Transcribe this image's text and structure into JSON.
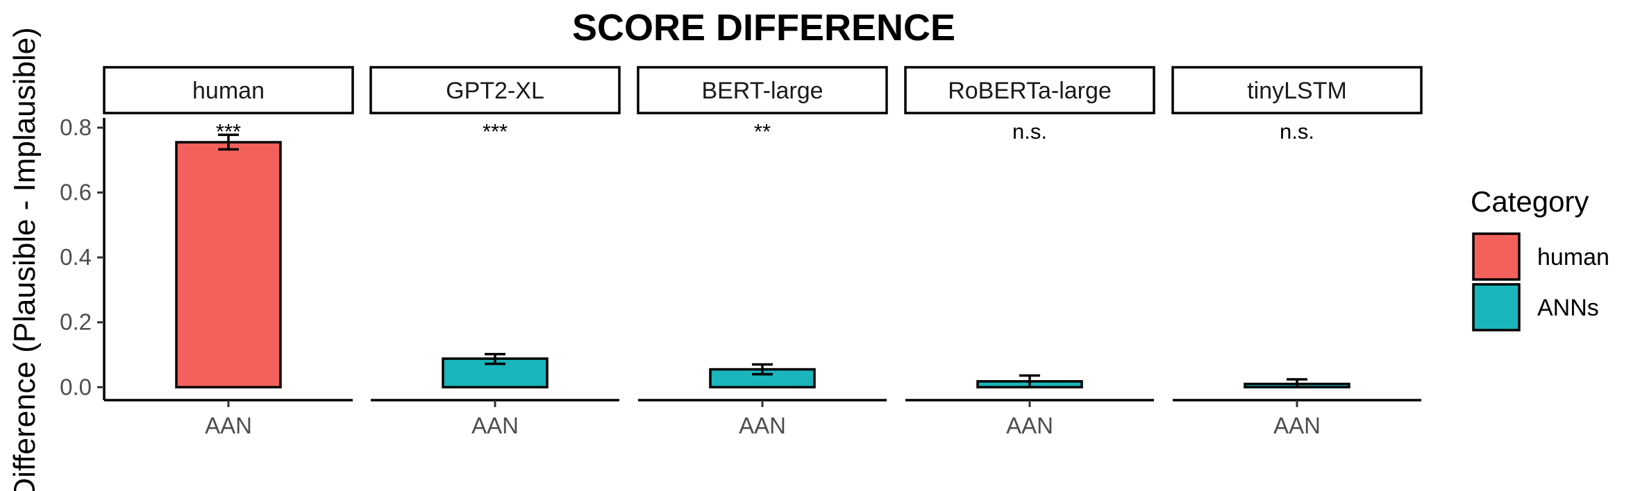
{
  "chart_data": {
    "type": "bar",
    "title": "SCORE DIFFERENCE",
    "ylabel": "Difference (Plausible - Implausible)",
    "xlabel": "",
    "ylim": [
      -0.04,
      0.83
    ],
    "yticks": [
      "0.0",
      "0.2",
      "0.4",
      "0.6",
      "0.8"
    ],
    "ytick_values": [
      0.0,
      0.2,
      0.4,
      0.6,
      0.8
    ],
    "grid": false,
    "legend_position": "right",
    "legend_title": "Category",
    "legend": [
      {
        "label": "human",
        "color": "#F4615C"
      },
      {
        "label": "ANNs",
        "color": "#1BB5BC"
      }
    ],
    "panels": [
      {
        "strip": "human",
        "category": "AAN",
        "value": 0.755,
        "err_low": 0.733,
        "err_high": 0.778,
        "significance": "***",
        "color": "#F4615C"
      },
      {
        "strip": "GPT2-XL",
        "category": "AAN",
        "value": 0.088,
        "err_low": 0.072,
        "err_high": 0.102,
        "significance": "***",
        "color": "#1BB5BC"
      },
      {
        "strip": "BERT-large",
        "category": "AAN",
        "value": 0.055,
        "err_low": 0.04,
        "err_high": 0.07,
        "significance": "**",
        "color": "#1BB5BC"
      },
      {
        "strip": "RoBERTa-large",
        "category": "AAN",
        "value": 0.018,
        "err_low": 0.0,
        "err_high": 0.036,
        "significance": "n.s.",
        "color": "#1BB5BC"
      },
      {
        "strip": "tinyLSTM",
        "category": "AAN",
        "value": 0.01,
        "err_low": 0.0,
        "err_high": 0.024,
        "significance": "n.s.",
        "color": "#1BB5BC"
      }
    ]
  }
}
